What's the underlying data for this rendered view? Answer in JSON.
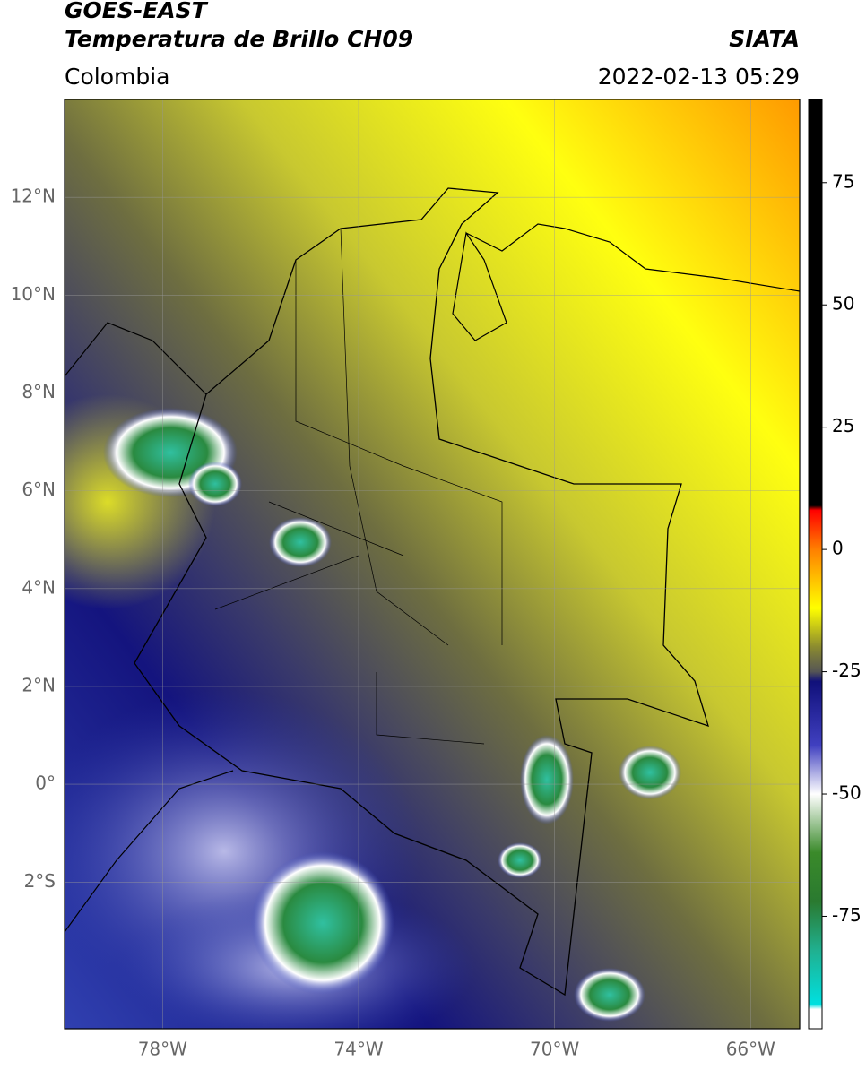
{
  "header": {
    "title": "GOES-EAST",
    "subtitle": "Temperatura de Brillo CH09",
    "source": "SIATA",
    "region": "Colombia",
    "timestamp": "2022-02-13 05:29"
  },
  "map": {
    "xlim": [
      -80,
      -65
    ],
    "ylim": [
      -5,
      14
    ],
    "xticks": [
      {
        "value": -78,
        "label": "78°W"
      },
      {
        "value": -74,
        "label": "74°W"
      },
      {
        "value": -70,
        "label": "70°W"
      },
      {
        "value": -66,
        "label": "66°W"
      }
    ],
    "yticks": [
      {
        "value": 12,
        "label": "12°N"
      },
      {
        "value": 10,
        "label": "10°N"
      },
      {
        "value": 8,
        "label": "8°N"
      },
      {
        "value": 6,
        "label": "6°N"
      },
      {
        "value": 4,
        "label": "4°N"
      },
      {
        "value": 2,
        "label": "2°N"
      },
      {
        "value": 0,
        "label": "0°"
      },
      {
        "value": -2,
        "label": "2°S"
      }
    ],
    "grid": true
  },
  "colorbar": {
    "lim": [
      -98,
      92
    ],
    "ticks": [
      75,
      50,
      25,
      0,
      -25,
      -50,
      -75
    ],
    "stops": [
      {
        "value": 92,
        "color": "#000000"
      },
      {
        "value": 9,
        "color": "#000000"
      },
      {
        "value": 8,
        "color": "#ff0000"
      },
      {
        "value": 0,
        "color": "#ff8000"
      },
      {
        "value": -12,
        "color": "#ffff00"
      },
      {
        "value": -20,
        "color": "#8a8a30"
      },
      {
        "value": -25,
        "color": "#555555"
      },
      {
        "value": -27,
        "color": "#10107a"
      },
      {
        "value": -40,
        "color": "#4040c0"
      },
      {
        "value": -50,
        "color": "#ffffff"
      },
      {
        "value": -62,
        "color": "#3a8a2a"
      },
      {
        "value": -72,
        "color": "#2a7a30"
      },
      {
        "value": -82,
        "color": "#20b090"
      },
      {
        "value": -93,
        "color": "#00e0e0"
      },
      {
        "value": -94,
        "color": "#ffffff"
      },
      {
        "value": -98,
        "color": "#ffffff"
      }
    ]
  }
}
